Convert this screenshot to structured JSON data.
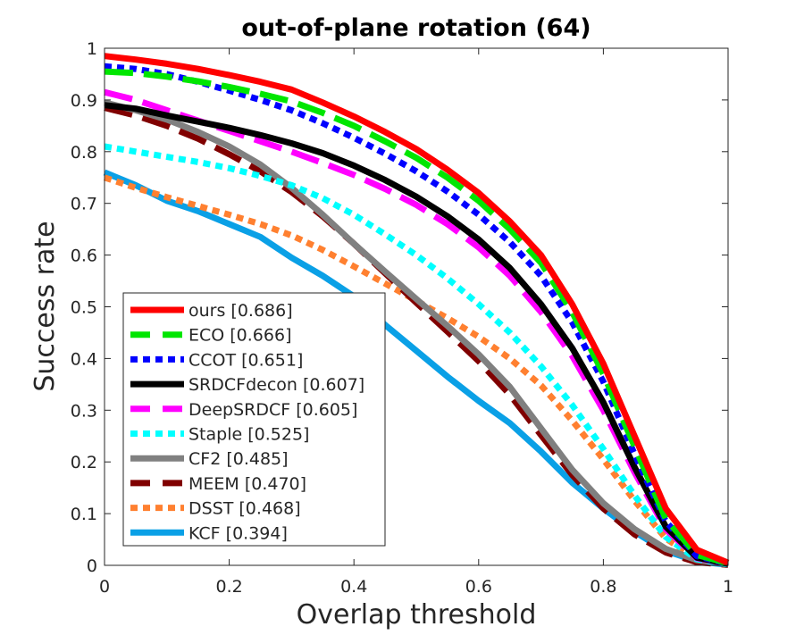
{
  "chart_data": {
    "type": "line",
    "title": "out-of-plane rotation (64)",
    "xlabel": "Overlap threshold",
    "ylabel": "Success rate",
    "xlim": [
      0,
      1
    ],
    "ylim": [
      0,
      1
    ],
    "xticks": [
      "0",
      "0.2",
      "0.4",
      "0.6",
      "0.8",
      "1"
    ],
    "yticks": [
      "0",
      "0.1",
      "0.2",
      "0.3",
      "0.4",
      "0.5",
      "0.6",
      "0.7",
      "0.8",
      "0.9",
      "1"
    ],
    "grid": false,
    "legend_position": "bottom-left",
    "x": [
      0,
      0.05,
      0.1,
      0.15,
      0.2,
      0.25,
      0.3,
      0.35,
      0.4,
      0.45,
      0.5,
      0.55,
      0.6,
      0.65,
      0.7,
      0.75,
      0.8,
      0.85,
      0.9,
      0.95,
      1
    ],
    "series": [
      {
        "name": "ours [0.686]",
        "color": "#ff0000",
        "dash": "solid",
        "values": [
          0.985,
          0.978,
          0.97,
          0.96,
          0.948,
          0.935,
          0.92,
          0.895,
          0.868,
          0.838,
          0.805,
          0.765,
          0.72,
          0.665,
          0.6,
          0.505,
          0.39,
          0.25,
          0.11,
          0.03,
          0.005
        ]
      },
      {
        "name": "ECO [0.666]",
        "color": "#00e600",
        "dash": "longdash",
        "values": [
          0.955,
          0.952,
          0.945,
          0.936,
          0.925,
          0.912,
          0.897,
          0.875,
          0.85,
          0.82,
          0.788,
          0.75,
          0.705,
          0.65,
          0.585,
          0.49,
          0.37,
          0.23,
          0.09,
          0.02,
          0.004
        ]
      },
      {
        "name": "CCOT [0.651]",
        "color": "#0000ff",
        "dash": "dotted",
        "values": [
          0.965,
          0.96,
          0.95,
          0.935,
          0.918,
          0.9,
          0.88,
          0.855,
          0.827,
          0.796,
          0.762,
          0.723,
          0.678,
          0.625,
          0.56,
          0.47,
          0.355,
          0.215,
          0.085,
          0.018,
          0.003
        ]
      },
      {
        "name": "SRDCFdecon [0.607]",
        "color": "#000000",
        "dash": "solid",
        "values": [
          0.89,
          0.883,
          0.87,
          0.858,
          0.846,
          0.832,
          0.816,
          0.797,
          0.773,
          0.745,
          0.713,
          0.675,
          0.63,
          0.575,
          0.505,
          0.42,
          0.315,
          0.19,
          0.075,
          0.015,
          0.003
        ]
      },
      {
        "name": "DeepSRDCF [0.605]",
        "color": "#ff00ff",
        "dash": "longdash",
        "values": [
          0.915,
          0.9,
          0.88,
          0.86,
          0.84,
          0.82,
          0.8,
          0.778,
          0.755,
          0.728,
          0.697,
          0.66,
          0.615,
          0.56,
          0.49,
          0.405,
          0.3,
          0.18,
          0.07,
          0.014,
          0.003
        ]
      },
      {
        "name": "Staple [0.525]",
        "color": "#00ffff",
        "dash": "dotted",
        "values": [
          0.81,
          0.8,
          0.79,
          0.78,
          0.768,
          0.753,
          0.735,
          0.71,
          0.678,
          0.64,
          0.6,
          0.555,
          0.505,
          0.45,
          0.385,
          0.31,
          0.225,
          0.135,
          0.055,
          0.012,
          0.002
        ]
      },
      {
        "name": "CF2 [0.485]",
        "color": "#808080",
        "dash": "solid",
        "values": [
          0.895,
          0.88,
          0.862,
          0.838,
          0.81,
          0.775,
          0.73,
          0.678,
          0.622,
          0.568,
          0.515,
          0.463,
          0.408,
          0.345,
          0.265,
          0.185,
          0.12,
          0.07,
          0.032,
          0.01,
          0.002
        ]
      },
      {
        "name": "MEEM [0.470]",
        "color": "#800000",
        "dash": "longdash",
        "values": [
          0.885,
          0.87,
          0.85,
          0.825,
          0.795,
          0.762,
          0.722,
          0.675,
          0.622,
          0.565,
          0.508,
          0.452,
          0.395,
          0.33,
          0.252,
          0.175,
          0.11,
          0.06,
          0.025,
          0.006,
          0.001
        ]
      },
      {
        "name": "DSST [0.468]",
        "color": "#ff8030",
        "dash": "dotted",
        "values": [
          0.75,
          0.73,
          0.712,
          0.695,
          0.678,
          0.66,
          0.638,
          0.61,
          0.578,
          0.545,
          0.512,
          0.478,
          0.442,
          0.4,
          0.348,
          0.28,
          0.205,
          0.125,
          0.052,
          0.012,
          0.002
        ]
      },
      {
        "name": "KCF [0.394]",
        "color": "#0aa0e6",
        "dash": "solid",
        "values": [
          0.76,
          0.735,
          0.705,
          0.685,
          0.66,
          0.635,
          0.595,
          0.56,
          0.52,
          0.465,
          0.415,
          0.365,
          0.318,
          0.275,
          0.22,
          0.16,
          0.11,
          0.065,
          0.028,
          0.008,
          0.001
        ]
      }
    ]
  }
}
